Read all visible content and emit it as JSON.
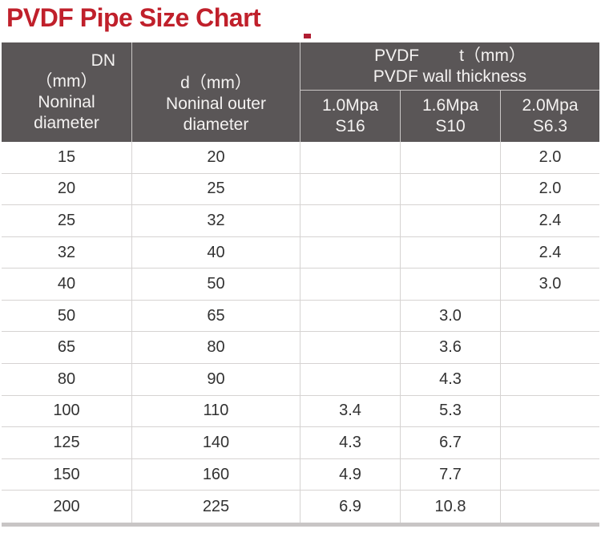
{
  "title": "PVDF Pipe Size Chart",
  "colors": {
    "title_red": "#c0202b",
    "header_bg": "#5a5657",
    "header_text": "#f4f2f1",
    "grid_line": "#d6d3d2",
    "bottom_bar": "#c8c5c5"
  },
  "header": {
    "dn": {
      "line1": "DN",
      "line2": "（mm）",
      "line3": "Noninal",
      "line4": "diameter"
    },
    "d": {
      "line1": "d（mm）",
      "line2": "Noninal outer",
      "line3": "diameter"
    },
    "group": {
      "part1": "PVDF",
      "part2": "t（mm）",
      "line2": "PVDF wall thickness"
    },
    "sub": [
      {
        "pressure": "1.0Mpa",
        "sdr": "S16"
      },
      {
        "pressure": "1.6Mpa",
        "sdr": "S10"
      },
      {
        "pressure": "2.0Mpa",
        "sdr": "S6.3"
      }
    ]
  },
  "chart_data": {
    "type": "table",
    "title": "PVDF Pipe Size Chart",
    "columns": [
      "DN（mm）Noninal diameter",
      "d（mm）Noninal outer diameter",
      "PVDF t（mm）PVDF wall thickness 1.0Mpa S16",
      "PVDF t（mm）PVDF wall thickness 1.6Mpa S10",
      "PVDF t（mm）PVDF wall thickness 2.0Mpa S6.3"
    ],
    "rows": [
      [
        "15",
        "20",
        "",
        "",
        "2.0"
      ],
      [
        "20",
        "25",
        "",
        "",
        "2.0"
      ],
      [
        "25",
        "32",
        "",
        "",
        "2.4"
      ],
      [
        "32",
        "40",
        "",
        "",
        "2.4"
      ],
      [
        "40",
        "50",
        "",
        "",
        "3.0"
      ],
      [
        "50",
        "65",
        "",
        "3.0",
        ""
      ],
      [
        "65",
        "80",
        "",
        "3.6",
        ""
      ],
      [
        "80",
        "90",
        "",
        "4.3",
        ""
      ],
      [
        "100",
        "110",
        "3.4",
        "5.3",
        ""
      ],
      [
        "125",
        "140",
        "4.3",
        "6.7",
        ""
      ],
      [
        "150",
        "160",
        "4.9",
        "7.7",
        ""
      ],
      [
        "200",
        "225",
        "6.9",
        "10.8",
        ""
      ]
    ]
  }
}
